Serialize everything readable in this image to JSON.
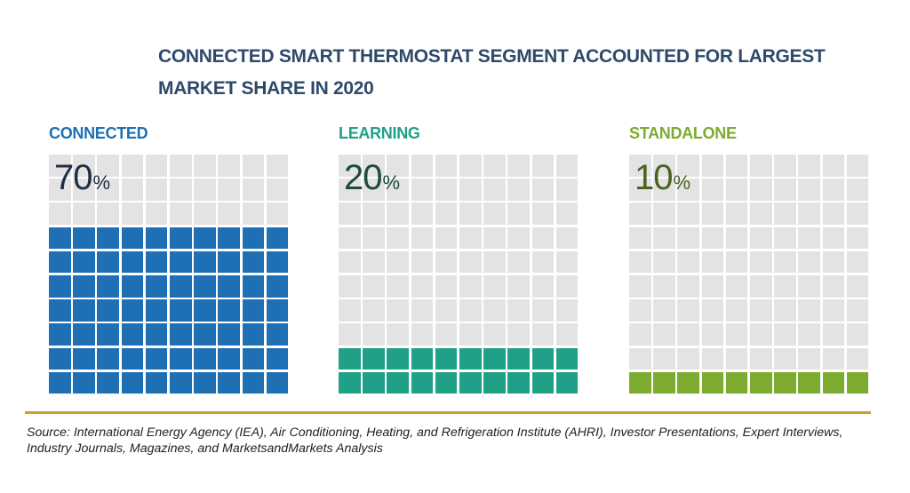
{
  "title": "CONNECTED SMART THERMOSTAT SEGMENT ACCOUNTED FOR LARGEST MARKET SHARE IN 2020",
  "source": "Source: International Energy Agency (IEA), Air Conditioning, Heating, and Refrigeration Institute (AHRI), Investor Presentations, Expert Interviews, Industry Journals, Magazines, and MarketsandMarkets Analysis",
  "chart_data": {
    "type": "waffle",
    "title": "CONNECTED SMART THERMOSTAT SEGMENT ACCOUNTED FOR LARGEST MARKET SHARE IN 2020",
    "unit": "%",
    "grid": "10x10",
    "empty_color": "#e3e3e3",
    "segments": [
      {
        "label": "CONNECTED",
        "value": 70,
        "value_text": "70",
        "percent_sign": "%",
        "color": "#1f6fb5",
        "label_color": "#1f6fb5",
        "value_color": "#1f2f45"
      },
      {
        "label": "LEARNING",
        "value": 20,
        "value_text": "20",
        "percent_sign": "%",
        "color": "#21a088",
        "label_color": "#21a088",
        "value_color": "#1f4a40"
      },
      {
        "label": "STANDALONE",
        "value": 10,
        "value_text": "10",
        "percent_sign": "%",
        "color": "#7cab2f",
        "label_color": "#7cab2f",
        "value_color": "#4a6420"
      }
    ]
  }
}
